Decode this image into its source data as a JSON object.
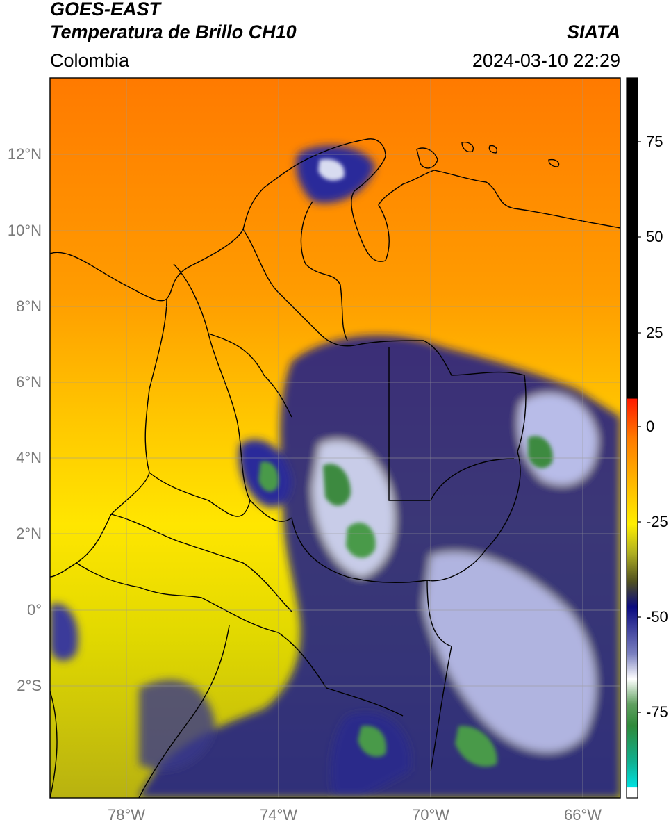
{
  "header": {
    "satellite": "GOES-EAST",
    "product": "Temperatura de Brillo CH10",
    "region": "Colombia",
    "agency": "SIATA",
    "datetime": "2024-03-10 22:29"
  },
  "map": {
    "lat_ticks": [
      "12°N",
      "10°N",
      "8°N",
      "6°N",
      "4°N",
      "2°N",
      "0°",
      "2°S"
    ],
    "lon_ticks": [
      "78°W",
      "74°W",
      "70°W",
      "66°W"
    ],
    "extent": {
      "lon_min": -80,
      "lon_max": -65,
      "lat_min": -5,
      "lat_max": 14
    },
    "grid": true
  },
  "colorbar": {
    "ticks": [
      "75",
      "50",
      "25",
      "0",
      "-25",
      "-50",
      "-75"
    ],
    "range": [
      -95,
      90
    ],
    "colors": {
      "hot": "#000000",
      "red": "#ff2a00",
      "orange": "#ff8c00",
      "yellow": "#ffee00",
      "olive": "#8a8a20",
      "navy": "#0a0a80",
      "white": "#ffffff",
      "green": "#2f8a3a",
      "cyan": "#00e0e0"
    }
  }
}
